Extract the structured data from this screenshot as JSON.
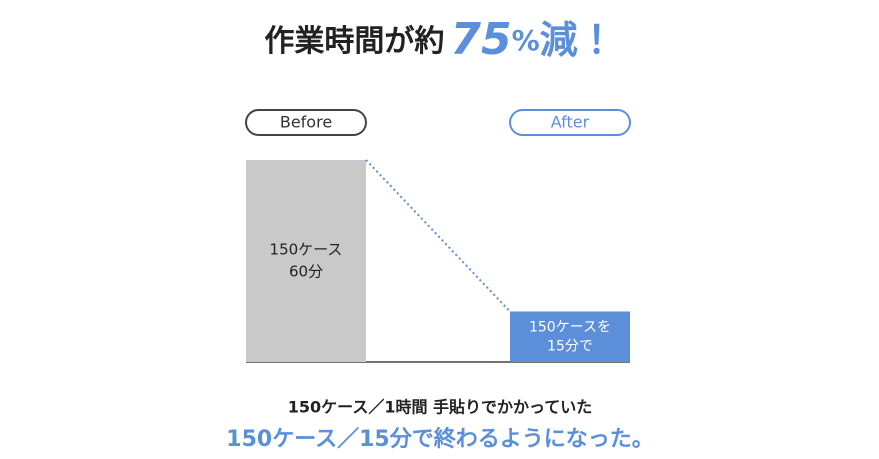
{
  "chart_data": {
    "type": "bar",
    "headline": [
      "作業時間が約",
      "75",
      "%",
      "減！"
    ],
    "categories": [
      "Before",
      "After"
    ],
    "values": [
      60,
      15
    ],
    "value_labels": [
      [
        "150ケース",
        "60分"
      ],
      [
        "150ケースを",
        "15分で"
      ]
    ],
    "colors": [
      "#c9c9c9",
      "#5b8fd9"
    ],
    "notes": [
      "150ケース／1時間 手貼りでかかっていた",
      "150ケース／15分で終わるようになった。"
    ]
  }
}
